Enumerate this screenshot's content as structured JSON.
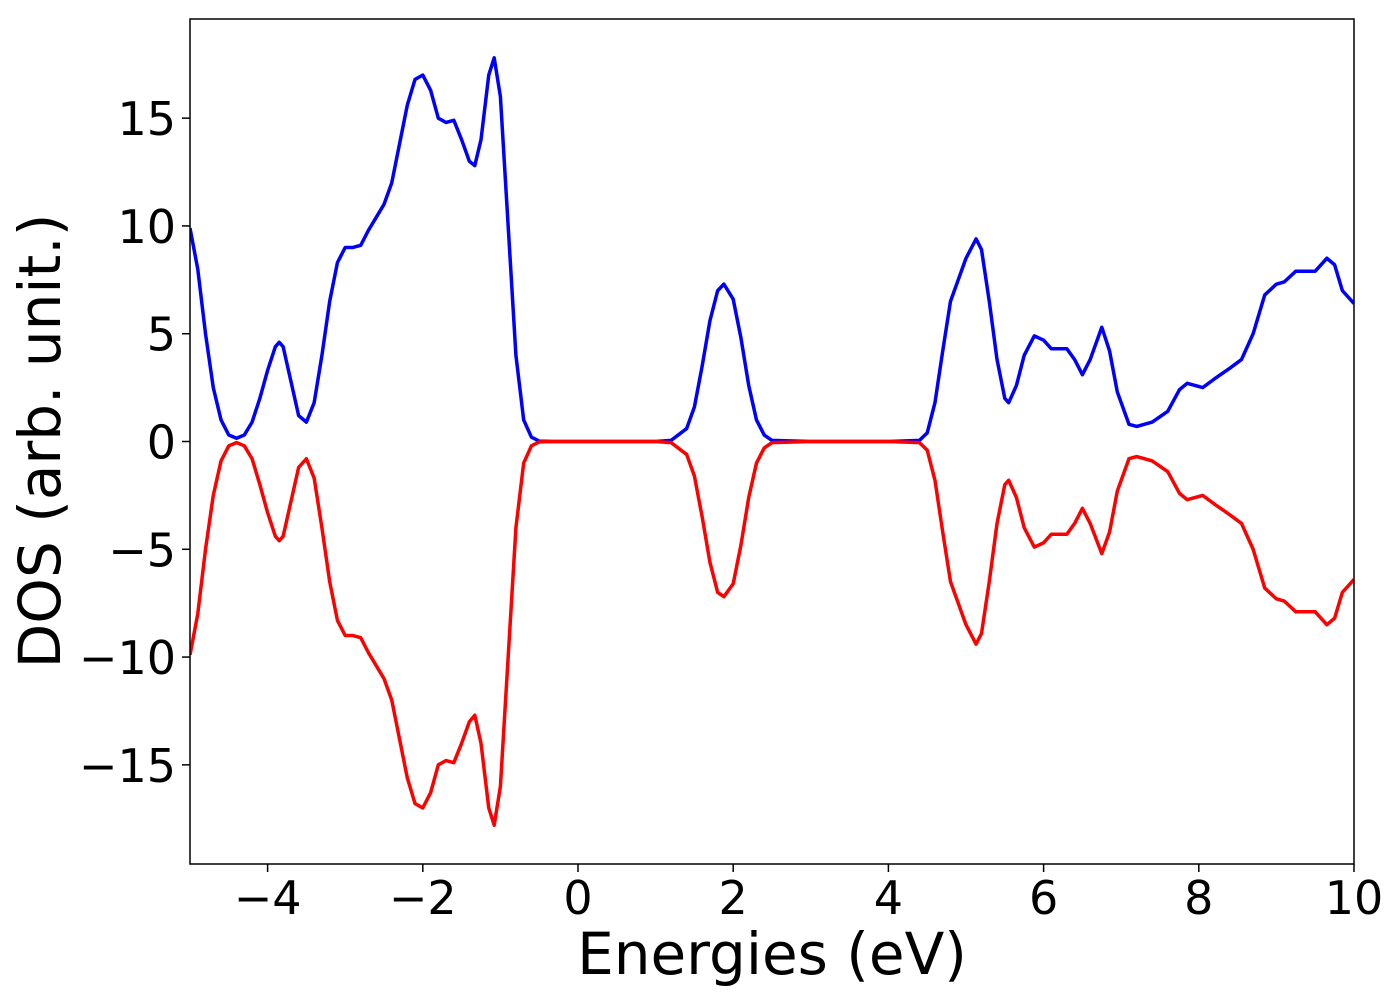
{
  "chart_data": {
    "type": "line",
    "xlabel": "Energies (eV)",
    "ylabel": "DOS (arb. unit.)",
    "x": [
      -5,
      -4.9,
      -4.8,
      -4.7,
      -4.6,
      -4.5,
      -4.4,
      -4.3,
      -4.2,
      -4.1,
      -4.0,
      -3.9,
      -3.85,
      -3.8,
      -3.7,
      -3.6,
      -3.5,
      -3.4,
      -3.3,
      -3.2,
      -3.1,
      -3.0,
      -2.9,
      -2.8,
      -2.7,
      -2.6,
      -2.5,
      -2.4,
      -2.3,
      -2.2,
      -2.1,
      -2.0,
      -1.9,
      -1.8,
      -1.7,
      -1.6,
      -1.5,
      -1.4,
      -1.33,
      -1.25,
      -1.15,
      -1.08,
      -1.0,
      -0.9,
      -0.8,
      -0.7,
      -0.6,
      -0.5,
      -0.3,
      0,
      0.5,
      1.0,
      1.2,
      1.4,
      1.5,
      1.6,
      1.7,
      1.8,
      1.88,
      2.0,
      2.1,
      2.2,
      2.3,
      2.4,
      2.5,
      3,
      4,
      4.4,
      4.5,
      4.6,
      4.7,
      4.8,
      4.9,
      5.0,
      5.13,
      5.2,
      5.3,
      5.4,
      5.5,
      5.55,
      5.65,
      5.75,
      5.88,
      6.0,
      6.1,
      6.2,
      6.3,
      6.4,
      6.5,
      6.6,
      6.75,
      6.85,
      6.95,
      7.1,
      7.2,
      7.4,
      7.6,
      7.75,
      7.85,
      7.95,
      8.05,
      8.2,
      8.4,
      8.55,
      8.7,
      8.85,
      9.0,
      9.1,
      9.25,
      9.35,
      9.5,
      9.65,
      9.75,
      9.85,
      10
    ],
    "series": [
      {
        "color": "#0000ff",
        "values": [
          9.9,
          8,
          5,
          2.5,
          1.0,
          0.3,
          0.15,
          0.3,
          0.9,
          2,
          3.3,
          4.4,
          4.6,
          4.4,
          2.8,
          1.2,
          0.9,
          1.8,
          4,
          6.5,
          8.3,
          9,
          9,
          9.1,
          9.8,
          10.4,
          11,
          12,
          13.8,
          15.6,
          16.8,
          17,
          16.3,
          15,
          14.8,
          14.9,
          14,
          13,
          12.8,
          14,
          17,
          17.8,
          16,
          10,
          4,
          1,
          0.2,
          0.02,
          0,
          0,
          0,
          0,
          0.05,
          0.6,
          1.6,
          3.5,
          5.6,
          7,
          7.3,
          6.6,
          4.8,
          2.6,
          1.0,
          0.3,
          0.05,
          0,
          0,
          0.05,
          0.4,
          1.8,
          4.2,
          6.5,
          7.5,
          8.5,
          9.4,
          8.9,
          6.5,
          3.8,
          2.0,
          1.8,
          2.6,
          4,
          4.9,
          4.7,
          4.3,
          4.3,
          4.3,
          3.8,
          3.1,
          3.8,
          5.3,
          4.2,
          2.3,
          0.8,
          0.7,
          0.9,
          1.4,
          2.4,
          2.7,
          2.6,
          2.5,
          2.9,
          3.4,
          3.8,
          5,
          6.8,
          7.3,
          7.4,
          7.9,
          7.9,
          7.9,
          8.5,
          8.2,
          7,
          6.4
        ]
      },
      {
        "color": "#ff0000",
        "values": [
          -9.9,
          -8,
          -5,
          -2.5,
          -0.9,
          -0.2,
          -0.05,
          -0.2,
          -0.8,
          -2,
          -3.3,
          -4.4,
          -4.6,
          -4.4,
          -2.8,
          -1.2,
          -0.8,
          -1.7,
          -4,
          -6.5,
          -8.3,
          -9,
          -9,
          -9.1,
          -9.8,
          -10.4,
          -11,
          -12,
          -13.8,
          -15.6,
          -16.8,
          -17,
          -16.3,
          -15,
          -14.8,
          -14.9,
          -14,
          -13,
          -12.7,
          -14,
          -17,
          -17.8,
          -16,
          -10,
          -4,
          -1,
          -0.2,
          -0.02,
          0,
          0,
          0,
          0,
          -0.05,
          -0.6,
          -1.6,
          -3.5,
          -5.6,
          -7,
          -7.2,
          -6.6,
          -4.8,
          -2.6,
          -1.0,
          -0.3,
          -0.05,
          0,
          0,
          -0.05,
          -0.4,
          -1.8,
          -4.2,
          -6.5,
          -7.5,
          -8.5,
          -9.4,
          -8.9,
          -6.5,
          -3.8,
          -2.0,
          -1.8,
          -2.6,
          -4,
          -4.9,
          -4.7,
          -4.3,
          -4.3,
          -4.3,
          -3.8,
          -3.1,
          -3.8,
          -5.2,
          -4.2,
          -2.3,
          -0.8,
          -0.7,
          -0.9,
          -1.4,
          -2.4,
          -2.7,
          -2.6,
          -2.5,
          -2.9,
          -3.4,
          -3.8,
          -5,
          -6.8,
          -7.3,
          -7.4,
          -7.9,
          -7.9,
          -7.9,
          -8.5,
          -8.2,
          -7,
          -6.4
        ]
      }
    ],
    "xlim": [
      -5,
      10
    ],
    "xticks": [
      {
        "value": -4,
        "label": "−4"
      },
      {
        "value": -2,
        "label": "−2"
      },
      0,
      2,
      4,
      6,
      8,
      10
    ],
    "ylim": [
      -19.6,
      19.6
    ],
    "yticks": [
      {
        "value": -15,
        "label": "−15"
      },
      {
        "value": -10,
        "label": "−10"
      },
      {
        "value": -5,
        "label": "−5"
      },
      0,
      5,
      10,
      15
    ],
    "grid": false
  }
}
